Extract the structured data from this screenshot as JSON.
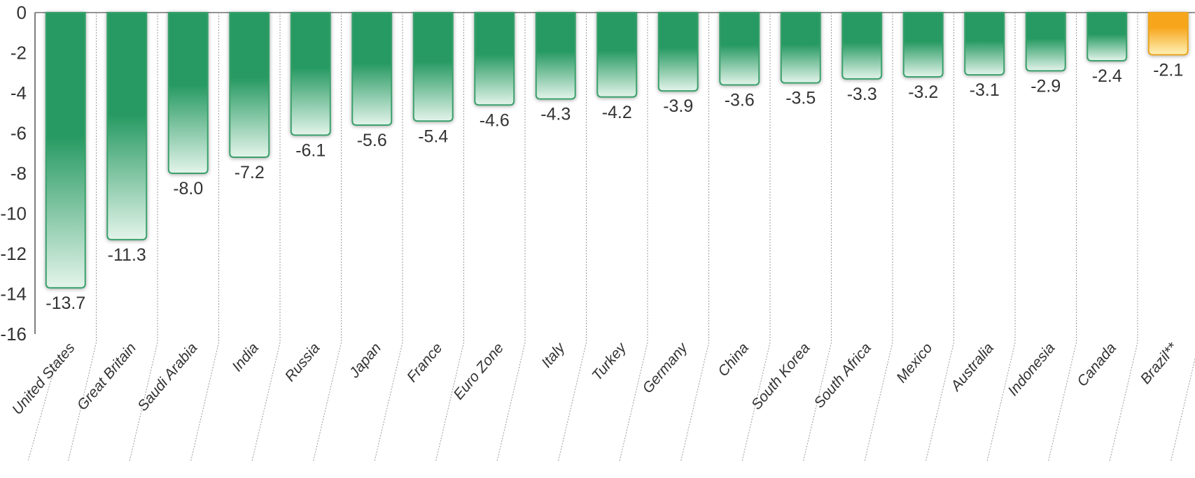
{
  "chart_data": {
    "type": "bar",
    "categories": [
      "United States",
      "Great Britain",
      "Saudi Arabia",
      "India",
      "Russia",
      "Japan",
      "France",
      "Euro Zone",
      "Italy",
      "Turkey",
      "Germany",
      "China",
      "South Korea",
      "South Africa",
      "Mexico",
      "Australia",
      "Indonesia",
      "Canada",
      "Brazil**"
    ],
    "values": [
      -13.7,
      -11.3,
      -8.0,
      -7.2,
      -6.1,
      -5.6,
      -5.4,
      -4.6,
      -4.3,
      -4.2,
      -3.9,
      -3.6,
      -3.5,
      -3.3,
      -3.2,
      -3.1,
      -2.9,
      -2.4,
      -2.1
    ],
    "value_labels": [
      "-13.7",
      "-11.3",
      "-8.0",
      "-7.2",
      "-6.1",
      "-5.6",
      "-5.4",
      "-4.6",
      "-4.3",
      "-4.2",
      "-3.9",
      "-3.6",
      "-3.5",
      "-3.3",
      "-3.2",
      "-3.1",
      "-2.9",
      "-2.4",
      "-2.1"
    ],
    "y_ticks": [
      0,
      -2,
      -4,
      -6,
      -8,
      -10,
      -12,
      -14,
      -16
    ],
    "ylim": [
      -16,
      0
    ],
    "title": "",
    "xlabel": "",
    "ylabel": "",
    "grid": "vertical dotted separators",
    "legend": "none",
    "highlight_category": "Brazil**",
    "colors": {
      "bar_top": "#279a62",
      "bar_bottom": "#e3f4ea",
      "bar_border": "#3aa06c",
      "highlight_top": "#f7a61c",
      "highlight_bottom": "#fff2b8",
      "highlight_border": "#e8a522",
      "axis": "#555555",
      "separator": "#9a9a9a"
    }
  }
}
